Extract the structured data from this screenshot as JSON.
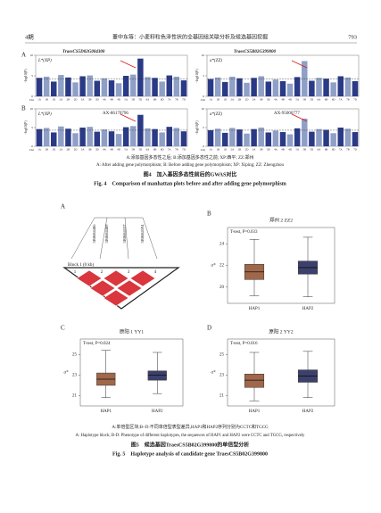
{
  "header": {
    "issue": "4期",
    "title": "董中东等：小麦籽粒色泽性状的全基因组关联分析及候选基因挖掘",
    "page": "793"
  },
  "figure4": {
    "chromosomes": [
      "1A",
      "1B",
      "1D",
      "2A",
      "2B",
      "2D",
      "3A",
      "3B",
      "3D",
      "4A",
      "4B",
      "4D",
      "5A",
      "5B",
      "5D",
      "6A",
      "6B",
      "6D",
      "7A",
      "7B",
      "7D"
    ],
    "xlabel": "Chr",
    "ylabel": "-log10(P)",
    "colors": [
      "#2b3a86",
      "#8f9fc6"
    ],
    "ylim": [
      0,
      10
    ],
    "yticks": [
      0,
      5,
      10
    ],
    "threshold": 4.3,
    "panels": [
      {
        "panel": "A",
        "trait": "L*(XP)",
        "gene": "TraesCS5D02G004300",
        "peaks": [
          4.5,
          4.8,
          3.6,
          5.2,
          4.6,
          3.4,
          4.9,
          5.1,
          3.8,
          4.4,
          3.9,
          3.2,
          5.0,
          5.3,
          9.2,
          4.7,
          4.5,
          3.6,
          5.1,
          4.8,
          3.9
        ]
      },
      {
        "panel": "A",
        "trait": "a*(ZZ)",
        "gene": "TraesCS5B02G399800",
        "peaks": [
          4.2,
          4.6,
          3.5,
          4.8,
          4.4,
          3.3,
          4.5,
          4.9,
          3.6,
          4.1,
          3.7,
          3.1,
          4.7,
          8.6,
          3.8,
          4.5,
          4.3,
          3.4,
          4.9,
          4.6,
          3.7
        ]
      },
      {
        "panel": "B",
        "trait": "L*(XP)",
        "gene": "AX-86170796",
        "peaks": [
          4.6,
          4.9,
          3.7,
          5.3,
          4.7,
          3.5,
          5.0,
          5.2,
          3.9,
          4.5,
          4.0,
          3.3,
          5.1,
          5.4,
          8.4,
          4.8,
          4.6,
          3.7,
          5.2,
          4.9,
          4.0
        ]
      },
      {
        "panel": "B",
        "trait": "a*(ZZ)",
        "gene": "AX-95006777",
        "peaks": [
          4.3,
          4.7,
          3.6,
          4.9,
          4.5,
          3.4,
          4.6,
          5.0,
          3.7,
          4.2,
          3.8,
          3.2,
          4.8,
          7.4,
          3.9,
          4.6,
          4.4,
          3.5,
          5.0,
          4.7,
          3.8
        ]
      }
    ],
    "caption_cn": "A:添加基因多态性之后; B:添加基因多态性之前; XP:西平; ZZ:郑州",
    "caption_en": "A: After adding gene polymorphism; B: Before adding gene polymorphism; XP: Xiping; ZZ: Zhengzhou",
    "title_cn": "图4　加入基因多态性前后的GWAS对比",
    "title_en": "Fig. 4　Comparison of manhattan plots before and after adding gene polymorphism"
  },
  "figure5": {
    "haplotype": {
      "panel": "A",
      "snps": [
        "5B0684486",
        "5B0684489",
        "5B0684537",
        "5B0684594"
      ],
      "block": "Block 1 (0 kb)",
      "indices": [
        "1",
        "2",
        "3",
        "4"
      ]
    },
    "categories": [
      "HAP1",
      "HAP2"
    ],
    "colors": [
      "#a0674a",
      "#3c406c"
    ],
    "ylabel": "a*",
    "boxplots": [
      {
        "panel": "B",
        "title": "郑州 2 ZZ2",
        "test": "T-test, P=0.033",
        "ylim": [
          18.5,
          25.5
        ],
        "yticks": [
          20,
          22,
          24
        ],
        "boxes": [
          {
            "min": 19.2,
            "q1": 20.7,
            "median": 21.4,
            "q3": 22.1,
            "max": 24.4
          },
          {
            "min": 19.1,
            "q1": 21.2,
            "median": 21.8,
            "q3": 22.4,
            "max": 24.6
          }
        ]
      },
      {
        "panel": "C",
        "title": "原阳 1 YY1",
        "test": "T-test, P=0.024",
        "ylim": [
          20,
          26.5
        ],
        "yticks": [
          21,
          23,
          25
        ],
        "boxes": [
          {
            "min": 20.8,
            "q1": 22.0,
            "median": 22.6,
            "q3": 23.2,
            "max": 25.4
          },
          {
            "min": 21.2,
            "q1": 22.5,
            "median": 23.0,
            "q3": 23.4,
            "max": 25.2
          }
        ]
      },
      {
        "panel": "D",
        "title": "原阳 2 YY2",
        "test": "T-test, P=0.016",
        "ylim": [
          20,
          26.5
        ],
        "yticks": [
          21,
          23,
          25
        ],
        "boxes": [
          {
            "min": 20.5,
            "q1": 21.8,
            "median": 22.5,
            "q3": 23.1,
            "max": 25.2
          },
          {
            "min": 20.8,
            "q1": 22.3,
            "median": 22.9,
            "q3": 23.5,
            "max": 25.3
          }
        ]
      }
    ],
    "caption_cn": "A:单倍型区块;B~D:不同单倍型表型差异,HAP1和HAP2序列分别为CCTC和TGCG",
    "caption_en": "A: Haplotype block; B-D: Phenotype of different haplotypes, the sequences of HAP1 and HAP2 were CCTC and TGCG, respectively",
    "title_cn": "图5　候选基因TraesCS5B02G399800的单倍型分析",
    "title_en": "Fig. 5　Haplotype analysis of candidate gene TraesCS5B02G399800"
  }
}
